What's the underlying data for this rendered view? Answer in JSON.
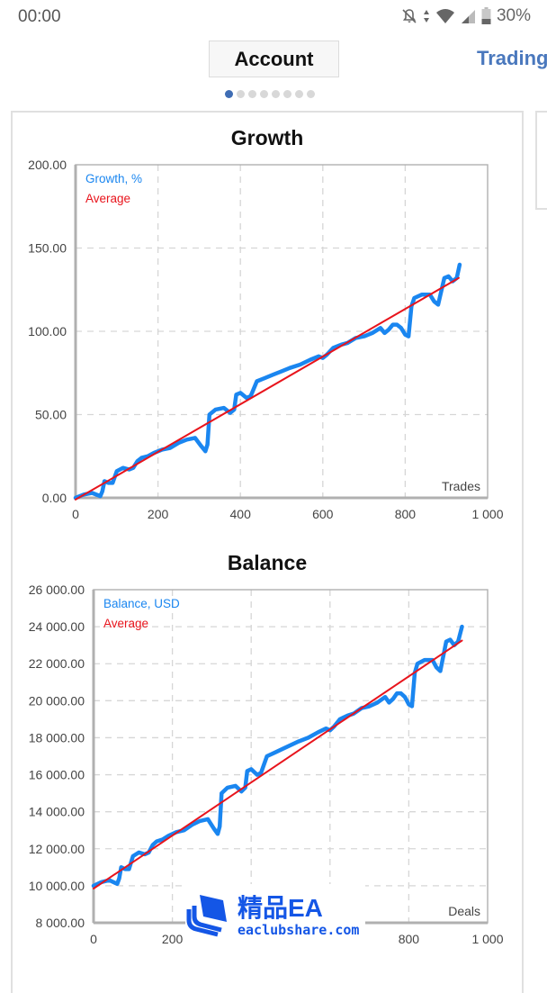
{
  "status_bar": {
    "time": "00:00",
    "icons": [
      "notifications-off-icon",
      "data-arrows-icon",
      "wifi-icon",
      "cell-signal-icon",
      "battery-icon"
    ],
    "battery": "30%"
  },
  "tabs": [
    {
      "label": "Account",
      "active": true
    },
    {
      "label": "Trading",
      "active": false
    }
  ],
  "pager": {
    "count": 8,
    "active_index": 0
  },
  "colors": {
    "series": "#1a86f0",
    "average": "#e8141c",
    "grid": "#d6d6d6",
    "axis": "#b0b0b0",
    "accent": "#4a78bd"
  },
  "watermark": {
    "title": "精品EA",
    "url": "eaclubshare.com"
  },
  "chart_data": [
    {
      "type": "line",
      "title": "Growth",
      "xlabel": "Trades",
      "ylabel": "",
      "xlim": [
        0,
        1000
      ],
      "ylim": [
        0,
        200
      ],
      "x_ticks": [
        "0",
        "200",
        "400",
        "600",
        "800",
        "1 000"
      ],
      "y_ticks": [
        "0.00",
        "50.00",
        "100.00",
        "150.00",
        "200.00"
      ],
      "grid": true,
      "legend_position": "top-left",
      "series": [
        {
          "name": "Growth, %",
          "x": [
            0,
            20,
            40,
            60,
            65,
            70,
            80,
            90,
            100,
            115,
            130,
            140,
            150,
            160,
            175,
            190,
            210,
            230,
            250,
            270,
            290,
            305,
            315,
            320,
            325,
            340,
            360,
            375,
            385,
            390,
            400,
            415,
            425,
            440,
            460,
            480,
            500,
            520,
            545,
            570,
            590,
            600,
            610,
            625,
            645,
            660,
            680,
            700,
            720,
            740,
            750,
            760,
            770,
            780,
            790,
            800,
            808,
            815,
            822,
            840,
            860,
            870,
            880,
            895,
            905,
            915,
            925,
            932
          ],
          "values": [
            0,
            2,
            3,
            1,
            4,
            10,
            9,
            9,
            16,
            18,
            17,
            18,
            22,
            24,
            25,
            27,
            29,
            30,
            33,
            35,
            36,
            31,
            28,
            32,
            50,
            53,
            54,
            51,
            53,
            62,
            63,
            60,
            61,
            70,
            72,
            74,
            76,
            78,
            80,
            83,
            85,
            84,
            86,
            90,
            92,
            93,
            96,
            97,
            99,
            102,
            99,
            101,
            104,
            104,
            102,
            98,
            97,
            115,
            120,
            122,
            122,
            118,
            116,
            132,
            133,
            130,
            132,
            140
          ]
        },
        {
          "name": "Average",
          "x": [
            0,
            930
          ],
          "values": [
            -1,
            132
          ]
        }
      ]
    },
    {
      "type": "line",
      "title": "Balance",
      "xlabel": "Deals",
      "ylabel": "",
      "xlim": [
        0,
        1000
      ],
      "ylim": [
        8000,
        26000
      ],
      "x_ticks": [
        "0",
        "200",
        "400",
        "600",
        "800",
        "1 000"
      ],
      "y_ticks": [
        "8 000.00",
        "10 000.00",
        "12 000.00",
        "14 000.00",
        "16 000.00",
        "18 000.00",
        "20 000.00",
        "22 000.00",
        "24 000.00",
        "26 000.00"
      ],
      "grid": true,
      "legend_position": "top-left",
      "series": [
        {
          "name": "Balance, USD",
          "x": [
            0,
            20,
            40,
            60,
            65,
            70,
            80,
            90,
            100,
            115,
            130,
            140,
            150,
            160,
            175,
            190,
            210,
            230,
            250,
            270,
            290,
            305,
            315,
            320,
            325,
            340,
            360,
            375,
            385,
            390,
            400,
            415,
            425,
            440,
            460,
            480,
            500,
            520,
            545,
            570,
            590,
            600,
            610,
            625,
            645,
            660,
            680,
            700,
            720,
            740,
            750,
            760,
            770,
            780,
            790,
            800,
            808,
            815,
            822,
            840,
            860,
            870,
            880,
            895,
            905,
            915,
            925,
            935
          ],
          "values": [
            10000,
            10200,
            10300,
            10100,
            10400,
            11000,
            10900,
            10900,
            11600,
            11800,
            11700,
            11800,
            12200,
            12400,
            12500,
            12700,
            12900,
            13000,
            13300,
            13500,
            13600,
            13100,
            12800,
            13200,
            15000,
            15300,
            15400,
            15100,
            15300,
            16200,
            16300,
            16000,
            16100,
            17000,
            17200,
            17400,
            17600,
            17800,
            18000,
            18300,
            18500,
            18400,
            18600,
            19000,
            19200,
            19300,
            19600,
            19700,
            19900,
            20200,
            19900,
            20100,
            20400,
            20400,
            20200,
            19800,
            19700,
            21500,
            22000,
            22200,
            22200,
            21800,
            21600,
            23200,
            23300,
            23000,
            23200,
            24000
          ]
        },
        {
          "name": "Average",
          "x": [
            0,
            935
          ],
          "values": [
            9850,
            23250
          ]
        }
      ]
    }
  ]
}
